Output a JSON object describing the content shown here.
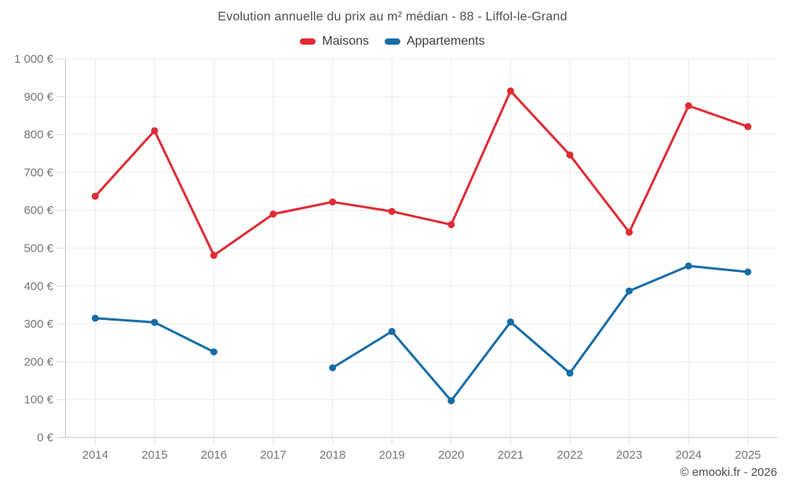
{
  "header": {
    "title": "Evolution annuelle du prix au m² médian - 88 - Liffol-le-Grand"
  },
  "legend": {
    "items": [
      {
        "label": "Maisons",
        "color": "#df2b33"
      },
      {
        "label": "Appartements",
        "color": "#176ca6"
      }
    ]
  },
  "footer": {
    "credit": "© emooki.fr - 2026"
  },
  "theme": {
    "grid_color": "#ececec",
    "tick_color": "#d8d8d8",
    "axis_color": "#c6c6c6",
    "tick_text_color": "#757575"
  },
  "chart_data": {
    "type": "line",
    "title": "Evolution annuelle du prix au m² médian - 88 - Liffol-le-Grand",
    "xlabel": "",
    "ylabel": "",
    "categories": [
      "2014",
      "2015",
      "2016",
      "2017",
      "2018",
      "2019",
      "2020",
      "2021",
      "2022",
      "2023",
      "2024",
      "2025"
    ],
    "series": [
      {
        "name": "Maisons",
        "color": "#df2b33",
        "values": [
          637,
          810,
          481,
          590,
          622,
          597,
          562,
          915,
          746,
          542,
          876,
          821
        ]
      },
      {
        "name": "Appartements",
        "color": "#176ca6",
        "values": [
          315,
          304,
          226,
          null,
          184,
          280,
          97,
          305,
          170,
          387,
          453,
          437
        ]
      }
    ],
    "ylim": [
      0,
      1000
    ],
    "ytick_step": 100,
    "ytick_labels": [
      "0 €",
      "100 €",
      "200 €",
      "300 €",
      "400 €",
      "500 €",
      "600 €",
      "700 €",
      "800 €",
      "900 €",
      "1 000 €"
    ],
    "grid": true,
    "legend_position": "top"
  }
}
